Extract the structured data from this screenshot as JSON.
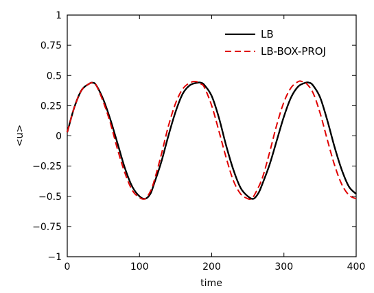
{
  "chart_data": {
    "type": "line",
    "title": "",
    "xlabel": "time",
    "ylabel": "<u>",
    "xlim": [
      0,
      400
    ],
    "ylim": [
      -1,
      1
    ],
    "xticks": [
      0,
      100,
      200,
      300,
      400
    ],
    "xtick_labels": [
      "0",
      "100",
      "200",
      "300",
      "400"
    ],
    "yticks": [
      -1,
      -0.75,
      -0.5,
      -0.25,
      0,
      0.25,
      0.5,
      0.75,
      1
    ],
    "ytick_labels": [
      "−1",
      "−0.75",
      "−0.5",
      "−0.25",
      "0",
      "0.25",
      "0.5",
      "0.75",
      "1"
    ],
    "grid": false,
    "legend_position": "top-right",
    "series": [
      {
        "name": "LB",
        "color": "#000000",
        "style": "solid",
        "x": [
          0,
          10,
          20,
          30,
          35,
          40,
          50,
          60,
          70,
          80,
          90,
          100,
          108,
          115,
          120,
          130,
          140,
          150,
          160,
          170,
          180,
          185,
          190,
          200,
          210,
          220,
          230,
          240,
          250,
          258,
          265,
          270,
          280,
          290,
          300,
          310,
          320,
          330,
          335,
          340,
          350,
          360,
          370,
          380,
          390,
          400
        ],
        "y": [
          0.03,
          0.24,
          0.38,
          0.43,
          0.44,
          0.42,
          0.3,
          0.13,
          -0.07,
          -0.27,
          -0.42,
          -0.5,
          -0.52,
          -0.48,
          -0.4,
          -0.22,
          0.0,
          0.2,
          0.35,
          0.42,
          0.44,
          0.44,
          0.42,
          0.33,
          0.15,
          -0.08,
          -0.28,
          -0.43,
          -0.5,
          -0.52,
          -0.47,
          -0.4,
          -0.24,
          -0.04,
          0.16,
          0.32,
          0.41,
          0.44,
          0.44,
          0.42,
          0.32,
          0.13,
          -0.09,
          -0.28,
          -0.42,
          -0.48
        ]
      },
      {
        "name": "LB-BOX-PROJ",
        "color": "#e00000",
        "style": "dashed",
        "x": [
          0,
          10,
          20,
          30,
          35,
          40,
          50,
          60,
          70,
          80,
          90,
          100,
          108,
          115,
          120,
          130,
          140,
          150,
          160,
          170,
          178,
          185,
          190,
          200,
          210,
          220,
          230,
          240,
          250,
          255,
          260,
          270,
          280,
          290,
          300,
          310,
          320,
          325,
          330,
          340,
          350,
          360,
          370,
          380,
          390,
          400
        ],
        "y": [
          0.03,
          0.24,
          0.38,
          0.43,
          0.44,
          0.42,
          0.28,
          0.1,
          -0.12,
          -0.31,
          -0.45,
          -0.51,
          -0.52,
          -0.46,
          -0.38,
          -0.16,
          0.08,
          0.27,
          0.39,
          0.44,
          0.45,
          0.43,
          0.4,
          0.25,
          0.04,
          -0.18,
          -0.37,
          -0.48,
          -0.52,
          -0.52,
          -0.48,
          -0.35,
          -0.14,
          0.09,
          0.28,
          0.4,
          0.45,
          0.45,
          0.44,
          0.36,
          0.19,
          -0.03,
          -0.24,
          -0.4,
          -0.49,
          -0.52
        ]
      }
    ]
  }
}
